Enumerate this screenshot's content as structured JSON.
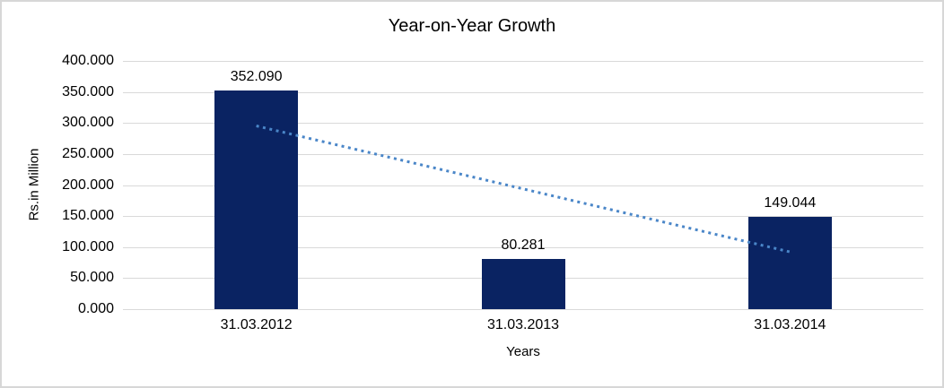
{
  "chart_data": {
    "type": "bar",
    "title": "Year-on-Year Growth",
    "xlabel": "Years",
    "ylabel": "Rs.in Million",
    "categories": [
      "31.03.2012",
      "31.03.2013",
      "31.03.2014"
    ],
    "values": [
      352.09,
      80.281,
      149.044
    ],
    "data_labels": [
      "352.090",
      "80.281",
      "149.044"
    ],
    "y_ticks": [
      "400.000",
      "350.000",
      "300.000",
      "250.000",
      "200.000",
      "150.000",
      "100.000",
      "50.000",
      "0.000"
    ],
    "ylim": [
      0,
      400
    ],
    "grid": true,
    "legend": "none",
    "bar_color": "#0a2362",
    "gridline_color": "#d9d9d9",
    "trendline": {
      "type": "linear",
      "style": "dotted",
      "color": "#4a86c8"
    }
  }
}
